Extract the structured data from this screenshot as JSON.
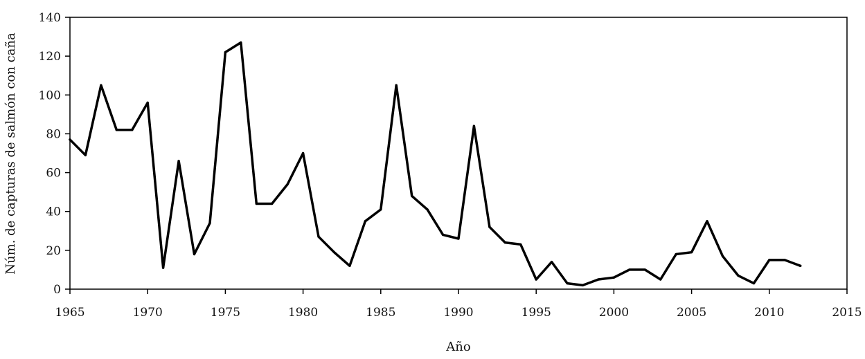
{
  "chart_data": {
    "type": "line",
    "title": "",
    "xlabel": "Año",
    "ylabel": "Núm. de capturas de salmón con caña",
    "xlim": [
      1965,
      2015
    ],
    "ylim": [
      0,
      140
    ],
    "x_ticks": [
      "1965",
      "1970",
      "1975",
      "1980",
      "1985",
      "1990",
      "1995",
      "2000",
      "2005",
      "2010",
      "2015"
    ],
    "y_ticks": [
      "0",
      "20",
      "40",
      "60",
      "80",
      "100",
      "120",
      "140"
    ],
    "grid": false,
    "legend": "none",
    "line_color": "#000000",
    "series": [
      {
        "x": [
          1965,
          1966,
          1967,
          1968,
          1969,
          1970,
          1971,
          1972,
          1973,
          1974,
          1975,
          1976,
          1977,
          1978,
          1979,
          1980,
          1981,
          1982,
          1983,
          1984,
          1985,
          1986,
          1987,
          1988,
          1989,
          1990,
          1991,
          1992,
          1993,
          1994,
          1995,
          1996,
          1997,
          1998,
          1999,
          2000,
          2001,
          2002,
          2003,
          2004,
          2005,
          2006,
          2007,
          2008,
          2009,
          2010,
          2011,
          2012
        ],
        "values": [
          77,
          69,
          105,
          82,
          82,
          96,
          11,
          66,
          18,
          34,
          122,
          127,
          44,
          44,
          54,
          70,
          27,
          19,
          12,
          35,
          41,
          105,
          48,
          41,
          28,
          26,
          84,
          32,
          24,
          23,
          5,
          14,
          3,
          2,
          5,
          6,
          10,
          10,
          5,
          18,
          19,
          35,
          17,
          7,
          3,
          15,
          15,
          12
        ]
      }
    ]
  }
}
